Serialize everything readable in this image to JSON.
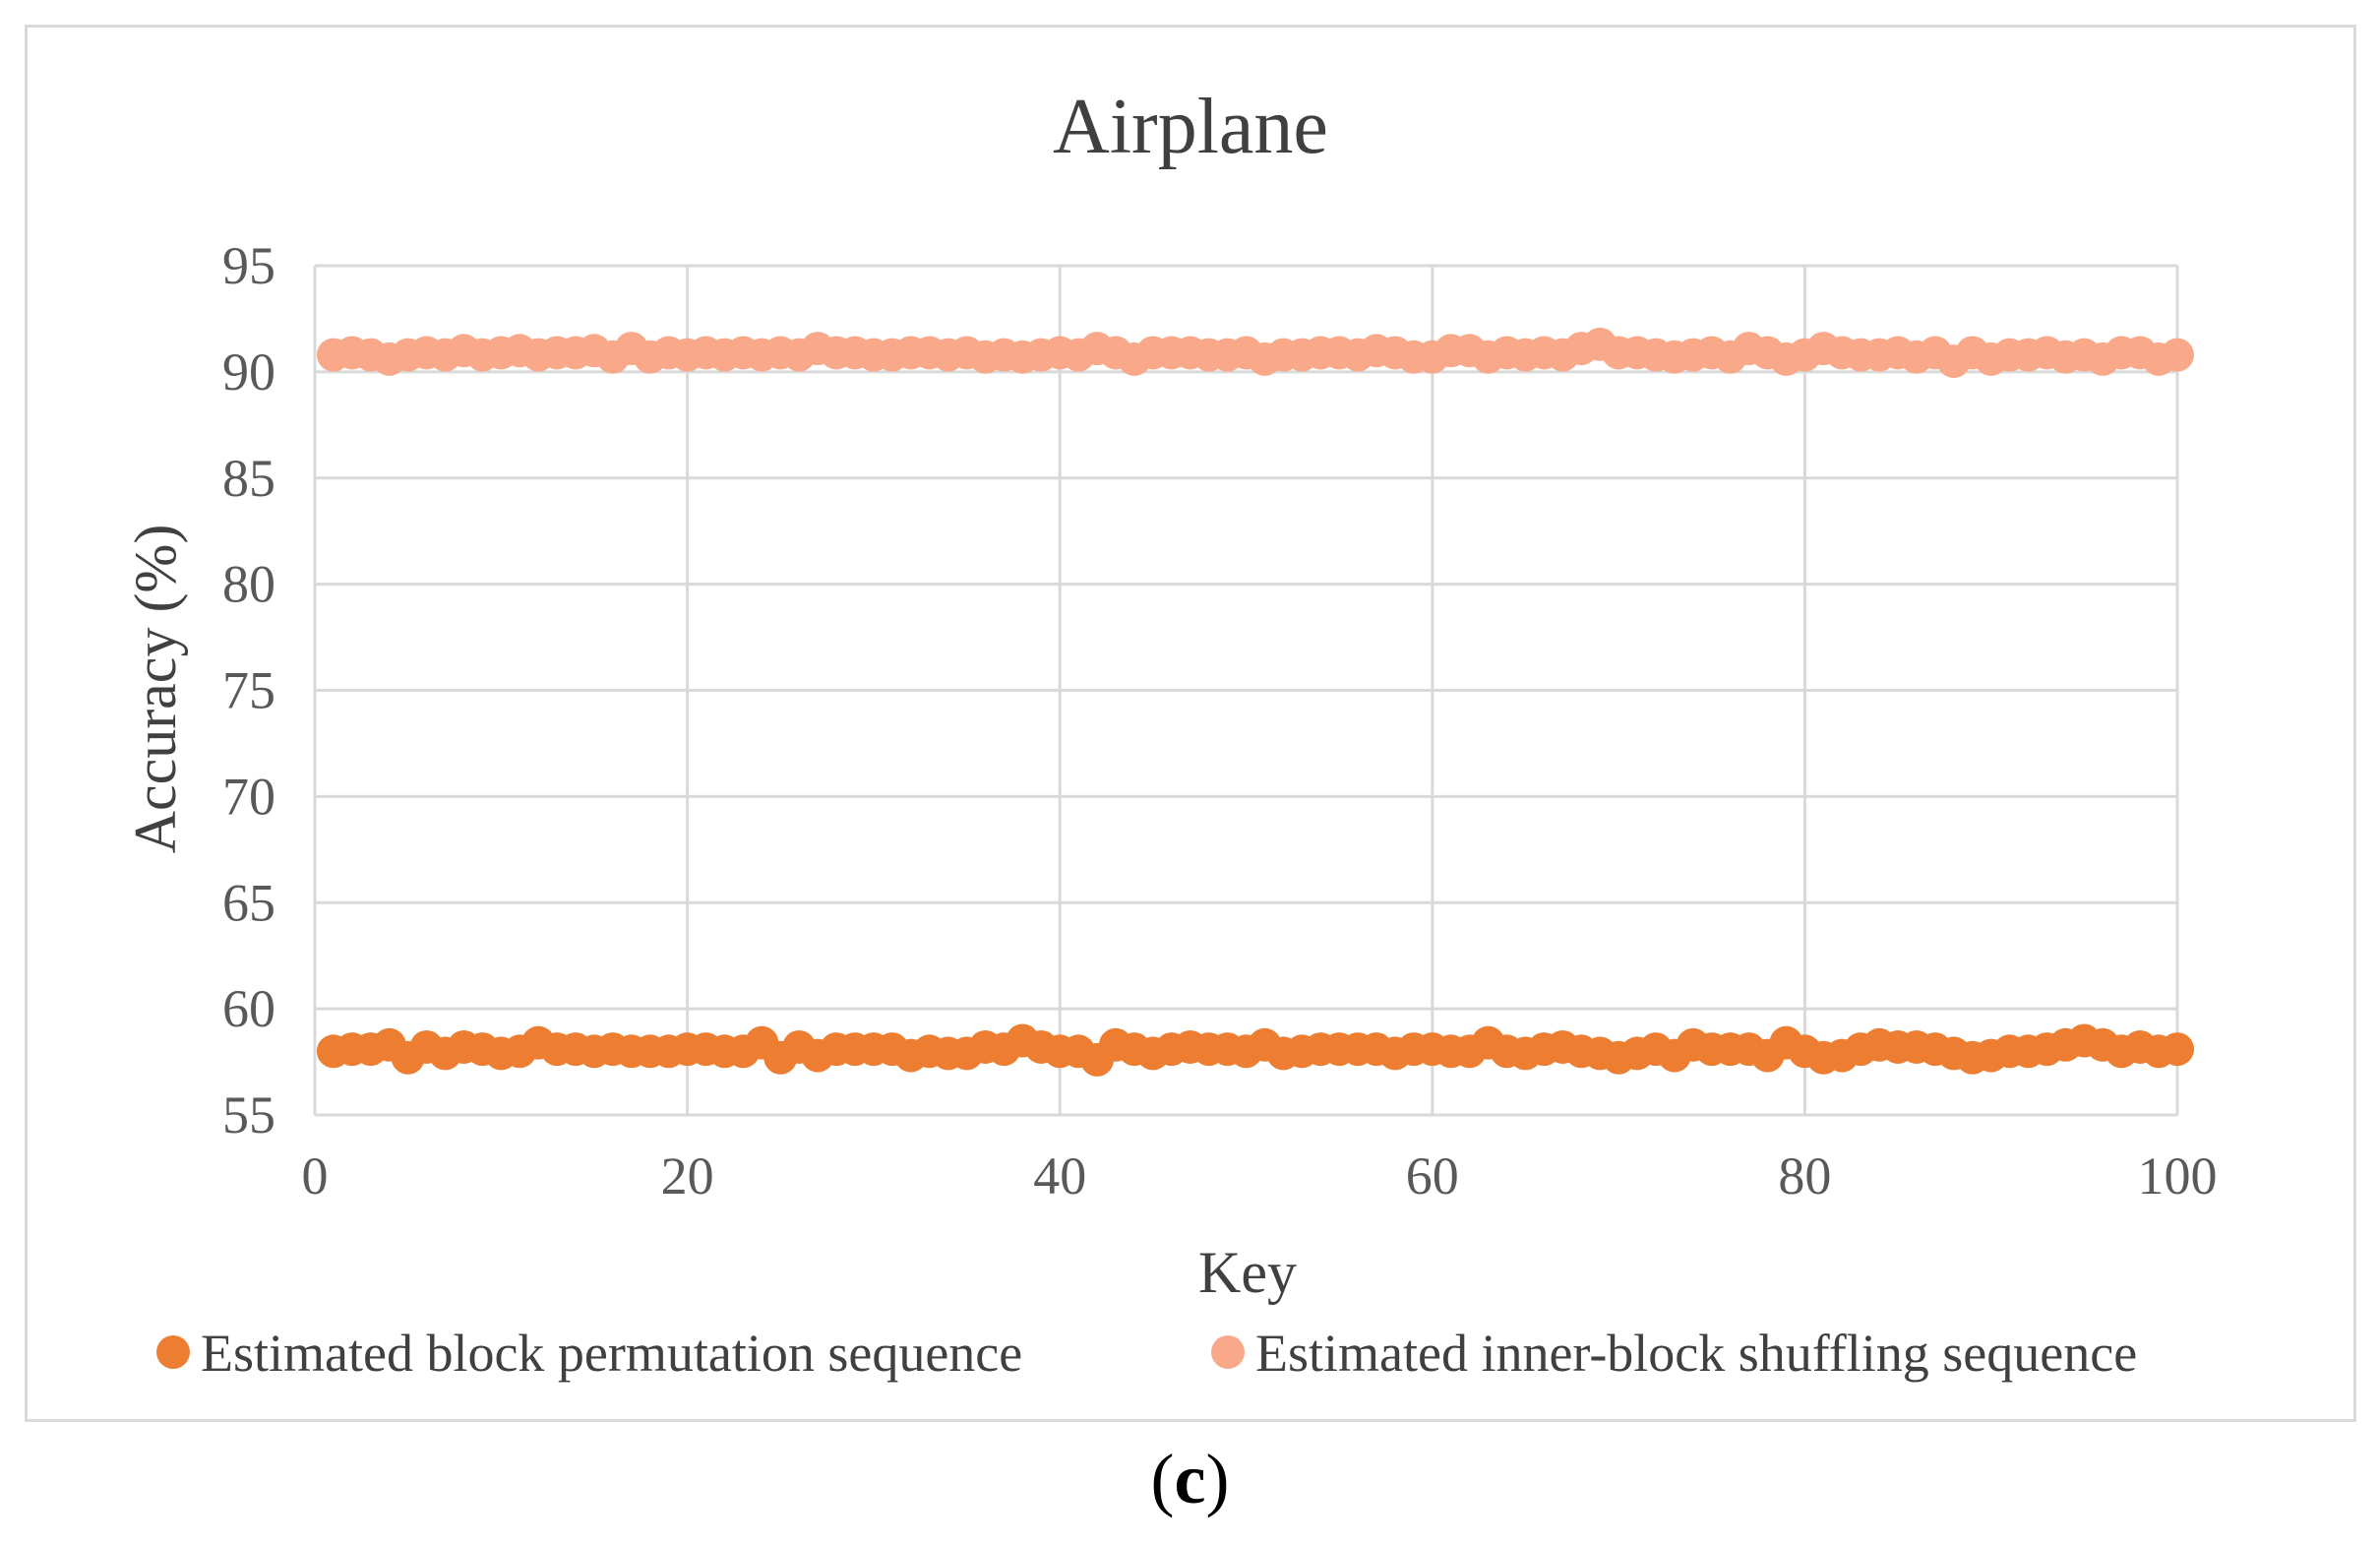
{
  "chart_data": {
    "type": "scatter",
    "title": "Airplane",
    "xlabel": "Key",
    "ylabel": "Accuracy (%)",
    "xlim": [
      0,
      100
    ],
    "ylim": [
      55,
      95
    ],
    "xticks": [
      0,
      20,
      40,
      60,
      80,
      100
    ],
    "yticks": [
      55,
      60,
      65,
      70,
      75,
      80,
      85,
      90,
      95
    ],
    "grid": true,
    "legend_position": "bottom",
    "series": [
      {
        "name": "Estimated block permutation sequence",
        "color": "#ed7d31",
        "x": [
          1,
          2,
          3,
          4,
          5,
          6,
          7,
          8,
          9,
          10,
          11,
          12,
          13,
          14,
          15,
          16,
          17,
          18,
          19,
          20,
          21,
          22,
          23,
          24,
          25,
          26,
          27,
          28,
          29,
          30,
          31,
          32,
          33,
          34,
          35,
          36,
          37,
          38,
          39,
          40,
          41,
          42,
          43,
          44,
          45,
          46,
          47,
          48,
          49,
          50,
          51,
          52,
          53,
          54,
          55,
          56,
          57,
          58,
          59,
          60,
          61,
          62,
          63,
          64,
          65,
          66,
          67,
          68,
          69,
          70,
          71,
          72,
          73,
          74,
          75,
          76,
          77,
          78,
          79,
          80,
          81,
          82,
          83,
          84,
          85,
          86,
          87,
          88,
          89,
          90,
          91,
          92,
          93,
          94,
          95,
          96,
          97,
          98,
          99,
          100
        ],
        "values": [
          58.0,
          58.1,
          58.1,
          58.3,
          57.7,
          58.2,
          57.9,
          58.2,
          58.1,
          57.9,
          58.0,
          58.4,
          58.1,
          58.1,
          58.0,
          58.1,
          58.0,
          58.0,
          58.0,
          58.1,
          58.1,
          58.0,
          58.0,
          58.4,
          57.7,
          58.2,
          57.8,
          58.1,
          58.1,
          58.1,
          58.1,
          57.8,
          58.0,
          57.9,
          57.9,
          58.2,
          58.1,
          58.5,
          58.2,
          58.0,
          58.0,
          57.6,
          58.3,
          58.1,
          57.9,
          58.1,
          58.2,
          58.1,
          58.1,
          58.0,
          58.3,
          57.9,
          58.0,
          58.1,
          58.1,
          58.1,
          58.1,
          57.9,
          58.1,
          58.1,
          58.0,
          58.0,
          58.4,
          58.0,
          57.9,
          58.1,
          58.2,
          58.0,
          57.9,
          57.7,
          57.9,
          58.1,
          57.8,
          58.3,
          58.1,
          58.1,
          58.1,
          57.8,
          58.4,
          58.0,
          57.7,
          57.8,
          58.1,
          58.3,
          58.2,
          58.2,
          58.1,
          57.9,
          57.7,
          57.8,
          58.0,
          58.0,
          58.1,
          58.3,
          58.5,
          58.3,
          58.0,
          58.2,
          58.0,
          58.1
        ]
      },
      {
        "name": "Estimated inner-block shuffling sequence",
        "color": "#f9a98a",
        "x": [
          1,
          2,
          3,
          4,
          5,
          6,
          7,
          8,
          9,
          10,
          11,
          12,
          13,
          14,
          15,
          16,
          17,
          18,
          19,
          20,
          21,
          22,
          23,
          24,
          25,
          26,
          27,
          28,
          29,
          30,
          31,
          32,
          33,
          34,
          35,
          36,
          37,
          38,
          39,
          40,
          41,
          42,
          43,
          44,
          45,
          46,
          47,
          48,
          49,
          50,
          51,
          52,
          53,
          54,
          55,
          56,
          57,
          58,
          59,
          60,
          61,
          62,
          63,
          64,
          65,
          66,
          67,
          68,
          69,
          70,
          71,
          72,
          73,
          74,
          75,
          76,
          77,
          78,
          79,
          80,
          81,
          82,
          83,
          84,
          85,
          86,
          87,
          88,
          89,
          90,
          91,
          92,
          93,
          94,
          95,
          96,
          97,
          98,
          99,
          100
        ],
        "values": [
          90.8,
          90.9,
          90.8,
          90.6,
          90.8,
          90.9,
          90.8,
          91.0,
          90.8,
          90.9,
          91.0,
          90.8,
          90.9,
          90.9,
          91.0,
          90.7,
          91.1,
          90.7,
          90.9,
          90.8,
          90.9,
          90.8,
          90.9,
          90.8,
          90.9,
          90.8,
          91.1,
          90.9,
          90.9,
          90.8,
          90.8,
          90.9,
          90.9,
          90.8,
          90.9,
          90.7,
          90.8,
          90.7,
          90.8,
          90.9,
          90.8,
          91.1,
          90.9,
          90.6,
          90.9,
          90.9,
          90.9,
          90.8,
          90.8,
          90.9,
          90.6,
          90.8,
          90.8,
          90.9,
          90.9,
          90.8,
          91.0,
          90.9,
          90.7,
          90.7,
          91.0,
          91.0,
          90.7,
          90.9,
          90.8,
          90.9,
          90.8,
          91.1,
          91.3,
          90.9,
          90.9,
          90.8,
          90.7,
          90.8,
          90.9,
          90.7,
          91.1,
          90.9,
          90.6,
          90.8,
          91.1,
          90.9,
          90.8,
          90.8,
          90.9,
          90.7,
          90.9,
          90.5,
          90.9,
          90.6,
          90.8,
          90.8,
          90.9,
          90.7,
          90.8,
          90.6,
          90.9,
          90.9,
          90.6,
          90.8
        ]
      }
    ]
  },
  "panel_label": {
    "open": "(",
    "letter": "c",
    "close": ")"
  }
}
